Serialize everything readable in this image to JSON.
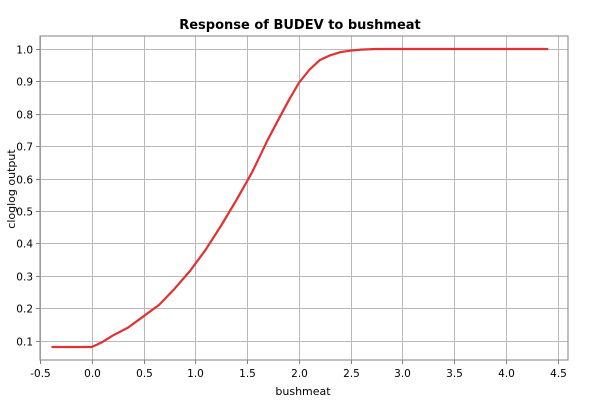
{
  "chart_data": {
    "type": "line",
    "title": "Response of BUDEV to bushmeat",
    "xlabel": "bushmeat",
    "ylabel": "cloglog output",
    "xlim": [
      -0.5,
      4.6
    ],
    "ylim": [
      0.04,
      1.04
    ],
    "xticks": [
      -0.5,
      0.0,
      0.5,
      1.0,
      1.5,
      2.0,
      2.5,
      3.0,
      3.5,
      4.0,
      4.5
    ],
    "xtick_labels": [
      "-0.5",
      "0.0",
      "0.5",
      "1.0",
      "1.5",
      "2.0",
      "2.5",
      "3.0",
      "3.5",
      "4.0",
      "4.5"
    ],
    "yticks": [
      0.1,
      0.2,
      0.3,
      0.4,
      0.5,
      0.6,
      0.7,
      0.8,
      0.9,
      1.0
    ],
    "ytick_labels": [
      "0.1",
      "0.2",
      "0.3",
      "0.4",
      "0.5",
      "0.6",
      "0.7",
      "0.8",
      "0.9",
      "1.0"
    ],
    "grid": true,
    "line_color": "#e33030",
    "series": [
      {
        "x": [
          -0.38,
          0.0,
          0.1,
          0.2,
          0.35,
          0.5,
          0.65,
          0.8,
          0.95,
          1.1,
          1.25,
          1.4,
          1.55,
          1.7,
          1.8,
          1.9,
          2.0,
          2.1,
          2.2,
          2.3,
          2.4,
          2.5,
          2.6,
          2.75,
          2.9,
          3.5,
          4.0,
          4.4
        ],
        "y": [
          0.08,
          0.08,
          0.095,
          0.115,
          0.14,
          0.175,
          0.21,
          0.26,
          0.315,
          0.38,
          0.455,
          0.535,
          0.62,
          0.72,
          0.78,
          0.84,
          0.895,
          0.935,
          0.965,
          0.98,
          0.99,
          0.995,
          0.998,
          1.0,
          1.0,
          1.0,
          1.0,
          1.0
        ]
      }
    ]
  }
}
